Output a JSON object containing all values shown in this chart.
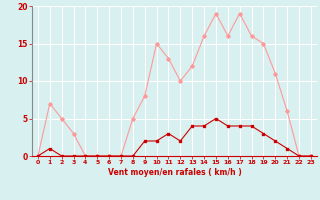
{
  "x": [
    0,
    1,
    2,
    3,
    4,
    5,
    6,
    7,
    8,
    9,
    10,
    11,
    12,
    13,
    14,
    15,
    16,
    17,
    18,
    19,
    20,
    21,
    22,
    23
  ],
  "wind_avg": [
    0,
    1,
    0,
    0,
    0,
    0,
    0,
    0,
    0,
    2,
    2,
    3,
    2,
    4,
    4,
    5,
    4,
    4,
    4,
    3,
    2,
    1,
    0,
    0
  ],
  "wind_gust": [
    0,
    7,
    5,
    3,
    0,
    0,
    0,
    0,
    5,
    8,
    15,
    13,
    10,
    12,
    16,
    19,
    16,
    19,
    16,
    15,
    11,
    6,
    0,
    0
  ],
  "avg_color": "#cc0000",
  "gust_color": "#ff9999",
  "bg_color": "#d8f0f0",
  "grid_color": "#ffffff",
  "xlabel": "Vent moyen/en rafales ( km/h )",
  "ylim": [
    0,
    20
  ],
  "yticks": [
    0,
    5,
    10,
    15,
    20
  ],
  "xticks": [
    0,
    1,
    2,
    3,
    4,
    5,
    6,
    7,
    8,
    9,
    10,
    11,
    12,
    13,
    14,
    15,
    16,
    17,
    18,
    19,
    20,
    21,
    22,
    23
  ]
}
